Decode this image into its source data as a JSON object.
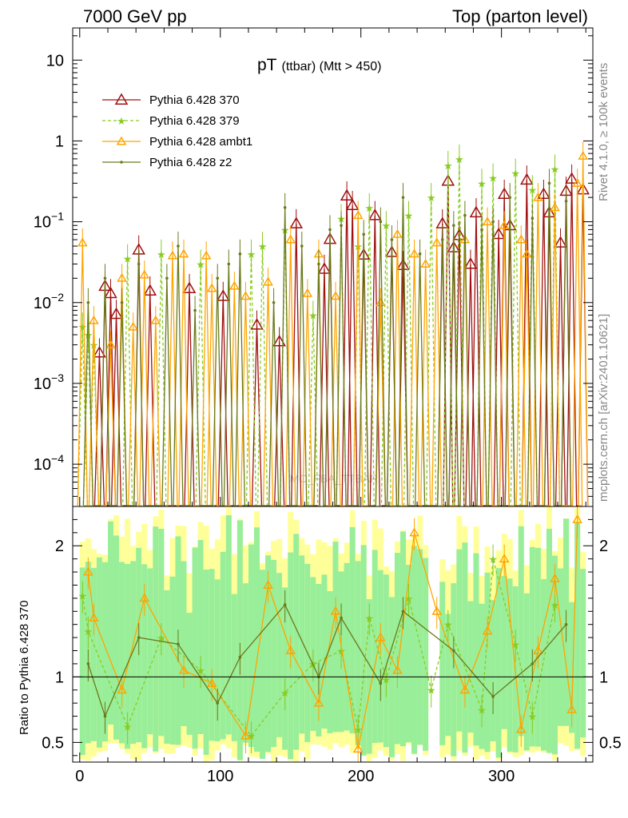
{
  "header": {
    "left": "7000 GeV pp",
    "right": "Top (parton level)"
  },
  "side_labels": {
    "rivet": "Rivet 4.1.0, ≥ 100k events",
    "mcplots": "mcplots.cern.ch [arXiv:2401.10621]"
  },
  "analysis_watermark": "MC_FBA_TTBAR",
  "chart_data": [
    {
      "panel": "main",
      "type": "line",
      "title": "pT",
      "title_suffix": "(ttbar) (Mtt > 450)",
      "xlabel": "",
      "ylabel": "",
      "yscale": "log",
      "xlim": [
        -5,
        365
      ],
      "ylim": [
        3e-05,
        25
      ],
      "y_ticks": [
        {
          "v": 10,
          "m": "10",
          "e": ""
        },
        {
          "v": 1,
          "m": "1",
          "e": ""
        },
        {
          "v": 0.1,
          "m": "10",
          "e": "−1"
        },
        {
          "v": 0.01,
          "m": "10",
          "e": "−2"
        },
        {
          "v": 0.001,
          "m": "10",
          "e": "−3"
        },
        {
          "v": 0.0001,
          "m": "10",
          "e": "−4"
        }
      ],
      "legend_position": "top-left",
      "bin_width": 4,
      "series": [
        {
          "name": "Pythia 6.428 370",
          "color": "#a01010",
          "marker": "triangle-open",
          "dash": "",
          "points": [
            [
              14,
              0.0024
            ],
            [
              18,
              0.016
            ],
            [
              22,
              0.013
            ],
            [
              26,
              0.0072
            ],
            [
              42,
              0.045
            ],
            [
              50,
              0.014
            ],
            [
              78,
              0.015
            ],
            [
              102,
              0.012
            ],
            [
              126,
              0.0053
            ],
            [
              142,
              0.0033
            ],
            [
              154,
              0.095
            ],
            [
              174,
              0.026
            ],
            [
              178,
              0.061
            ],
            [
              190,
              0.21
            ],
            [
              194,
              0.16
            ],
            [
              202,
              0.039
            ],
            [
              210,
              0.12
            ],
            [
              222,
              0.042
            ],
            [
              230,
              0.029
            ],
            [
              258,
              0.095
            ],
            [
              262,
              0.32
            ],
            [
              266,
              0.048
            ],
            [
              270,
              0.068
            ],
            [
              278,
              0.03
            ],
            [
              282,
              0.13
            ],
            [
              298,
              0.07
            ],
            [
              302,
              0.22
            ],
            [
              306,
              0.09
            ],
            [
              318,
              0.33
            ],
            [
              330,
              0.22
            ],
            [
              334,
              0.13
            ],
            [
              342,
              0.055
            ],
            [
              346,
              0.24
            ],
            [
              350,
              0.34
            ],
            [
              358,
              0.25
            ]
          ]
        },
        {
          "name": "Pythia 6.428 379",
          "color": "#88cc22",
          "marker": "star",
          "dash": "4,3",
          "points": [
            [
              2,
              0.005
            ],
            [
              6,
              0.004
            ],
            [
              10,
              0.003
            ],
            [
              34,
              0.035
            ],
            [
              58,
              0.04
            ],
            [
              86,
              0.03
            ],
            [
              122,
              0.04
            ],
            [
              130,
              0.05
            ],
            [
              146,
              0.08
            ],
            [
              166,
              0.007
            ],
            [
              186,
              0.11
            ],
            [
              198,
              0.05
            ],
            [
              206,
              0.15
            ],
            [
              218,
              0.09
            ],
            [
              234,
              0.12
            ],
            [
              250,
              0.2
            ],
            [
              262,
              0.5
            ],
            [
              270,
              0.6
            ],
            [
              286,
              0.3
            ],
            [
              294,
              0.35
            ],
            [
              310,
              0.4
            ],
            [
              322,
              0.25
            ],
            [
              338,
              0.45
            ]
          ]
        },
        {
          "name": "Pythia 6.428 ambt1",
          "color": "#ffa500",
          "marker": "triangle-open",
          "dash": "",
          "points": [
            [
              2,
              0.055
            ],
            [
              10,
              0.006
            ],
            [
              22,
              0.003
            ],
            [
              30,
              0.02
            ],
            [
              38,
              0.005
            ],
            [
              46,
              0.022
            ],
            [
              54,
              0.006
            ],
            [
              66,
              0.038
            ],
            [
              74,
              0.04
            ],
            [
              90,
              0.038
            ],
            [
              94,
              0.015
            ],
            [
              110,
              0.016
            ],
            [
              118,
              0.012
            ],
            [
              134,
              0.018
            ],
            [
              150,
              0.06
            ],
            [
              162,
              0.013
            ],
            [
              170,
              0.04
            ],
            [
              182,
              0.012
            ],
            [
              198,
              0.12
            ],
            [
              214,
              0.01
            ],
            [
              226,
              0.07
            ],
            [
              238,
              0.04
            ],
            [
              246,
              0.03
            ],
            [
              254,
              0.055
            ],
            [
              274,
              0.06
            ],
            [
              290,
              0.1
            ],
            [
              302,
              0.09
            ],
            [
              314,
              0.06
            ],
            [
              318,
              0.04
            ],
            [
              326,
              0.2
            ],
            [
              338,
              0.15
            ],
            [
              354,
              0.3
            ],
            [
              358,
              0.65
            ]
          ]
        },
        {
          "name": "Pythia 6.428 z2",
          "color": "#6b7a1a",
          "marker": "dot",
          "dash": "",
          "points": [
            [
              6,
              0.01
            ],
            [
              18,
              0.02
            ],
            [
              30,
              0.01
            ],
            [
              42,
              0.03
            ],
            [
              62,
              0.02
            ],
            [
              70,
              0.05
            ],
            [
              82,
              0.008
            ],
            [
              98,
              0.02
            ],
            [
              106,
              0.03
            ],
            [
              114,
              0.04
            ],
            [
              138,
              0.01
            ],
            [
              146,
              0.15
            ],
            [
              158,
              0.05
            ],
            [
              170,
              0.03
            ],
            [
              178,
              0.08
            ],
            [
              186,
              0.09
            ],
            [
              202,
              0.07
            ],
            [
              214,
              0.1
            ],
            [
              222,
              0.06
            ],
            [
              230,
              0.2
            ],
            [
              242,
              0.04
            ],
            [
              258,
              0.06
            ],
            [
              266,
              0.09
            ],
            [
              274,
              0.12
            ],
            [
              286,
              0.08
            ],
            [
              294,
              0.1
            ],
            [
              306,
              0.2
            ],
            [
              322,
              0.11
            ],
            [
              334,
              0.3
            ],
            [
              346,
              0.18
            ]
          ]
        }
      ]
    },
    {
      "panel": "ratio",
      "type": "line",
      "ylabel": "Ratio to Pythia 6.428 370",
      "yscale": "linear",
      "xlim": [
        -5,
        365
      ],
      "ylim": [
        0.35,
        2.3
      ],
      "y_ticks": [
        {
          "v": 0.5,
          "label": "0.5"
        },
        {
          "v": 1,
          "label": "1"
        },
        {
          "v": 2,
          "label": "2"
        }
      ],
      "x_ticks": [
        0,
        100,
        200,
        300
      ],
      "reference_line": 1,
      "series": [
        {
          "name": "Pythia 6.428 379",
          "color": "#88cc22",
          "marker": "star",
          "dash": "4,3",
          "points": [
            [
              2,
              1.62
            ],
            [
              6,
              1.35
            ],
            [
              34,
              0.62
            ],
            [
              58,
              1.3
            ],
            [
              86,
              1.05
            ],
            [
              122,
              0.55
            ],
            [
              146,
              0.88
            ],
            [
              166,
              1.1
            ],
            [
              186,
              1.2
            ],
            [
              198,
              0.6
            ],
            [
              206,
              1.45
            ],
            [
              218,
              0.98
            ],
            [
              234,
              1.6
            ],
            [
              250,
              0.9
            ],
            [
              262,
              1.4
            ],
            [
              286,
              0.75
            ],
            [
              294,
              1.9
            ],
            [
              310,
              1.25
            ],
            [
              322,
              0.7
            ],
            [
              338,
              1.55
            ]
          ]
        },
        {
          "name": "Pythia 6.428 ambt1",
          "color": "#ffa500",
          "marker": "triangle-open",
          "dash": "",
          "points": [
            [
              6,
              1.8
            ],
            [
              10,
              1.45
            ],
            [
              30,
              0.9
            ],
            [
              46,
              1.6
            ],
            [
              74,
              1.05
            ],
            [
              94,
              0.95
            ],
            [
              118,
              0.55
            ],
            [
              134,
              1.7
            ],
            [
              150,
              1.2
            ],
            [
              170,
              0.8
            ],
            [
              182,
              1.5
            ],
            [
              198,
              0.45
            ],
            [
              214,
              1.3
            ],
            [
              226,
              1.05
            ],
            [
              238,
              2.1
            ],
            [
              254,
              1.5
            ],
            [
              274,
              0.9
            ],
            [
              290,
              1.35
            ],
            [
              302,
              1.9
            ],
            [
              314,
              0.6
            ],
            [
              326,
              1.2
            ],
            [
              338,
              1.75
            ],
            [
              350,
              0.75
            ],
            [
              354,
              2.2
            ]
          ]
        },
        {
          "name": "Pythia 6.428 z2",
          "color": "#6b7a1a",
          "marker": "dot",
          "dash": "",
          "points": [
            [
              6,
              1.1
            ],
            [
              18,
              0.7
            ],
            [
              42,
              1.3
            ],
            [
              70,
              1.25
            ],
            [
              98,
              0.8
            ],
            [
              114,
              1.15
            ],
            [
              146,
              1.55
            ],
            [
              170,
              1.0
            ],
            [
              186,
              1.45
            ],
            [
              214,
              0.95
            ],
            [
              230,
              1.5
            ],
            [
              266,
              1.2
            ],
            [
              294,
              0.85
            ],
            [
              322,
              1.1
            ],
            [
              346,
              1.4
            ]
          ]
        }
      ]
    }
  ]
}
